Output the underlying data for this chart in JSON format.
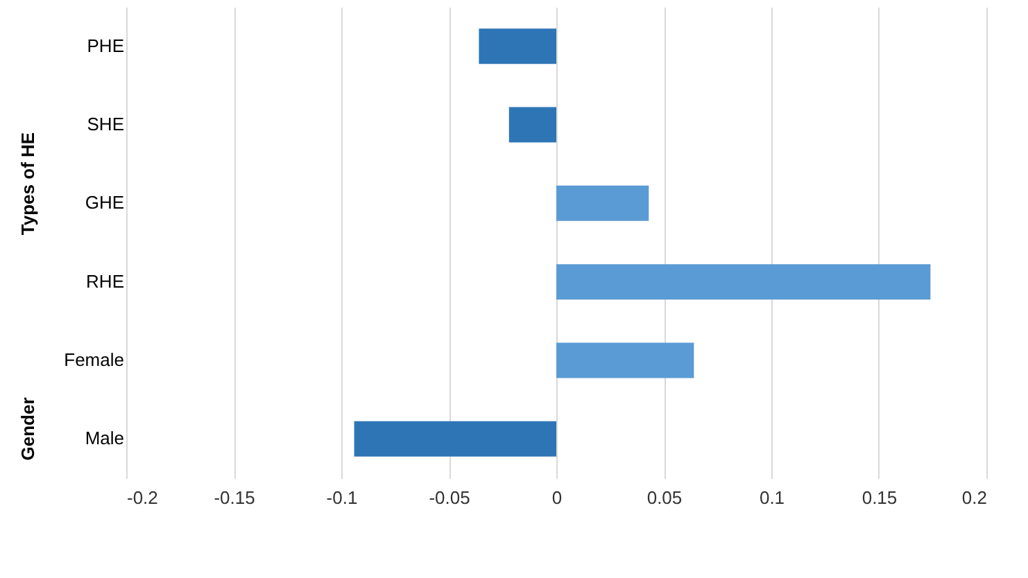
{
  "chart_data": {
    "type": "bar",
    "orientation": "horizontal",
    "categories": [
      "PHE",
      "SHE",
      "GHE",
      "RHE",
      "Female",
      "Male"
    ],
    "values": [
      -0.036,
      -0.022,
      0.043,
      0.174,
      0.064,
      -0.094
    ],
    "colors": [
      "#2e75b6",
      "#2e75b6",
      "#5b9bd5",
      "#5b9bd5",
      "#5b9bd5",
      "#2e75b6"
    ],
    "xlim": [
      -0.2,
      0.2
    ],
    "xticks": [
      -0.2,
      -0.15,
      -0.1,
      -0.05,
      0,
      0.05,
      0.1,
      0.15,
      0.2
    ],
    "grid": "x",
    "annotations": [
      "Types of HE",
      "Gender"
    ]
  }
}
